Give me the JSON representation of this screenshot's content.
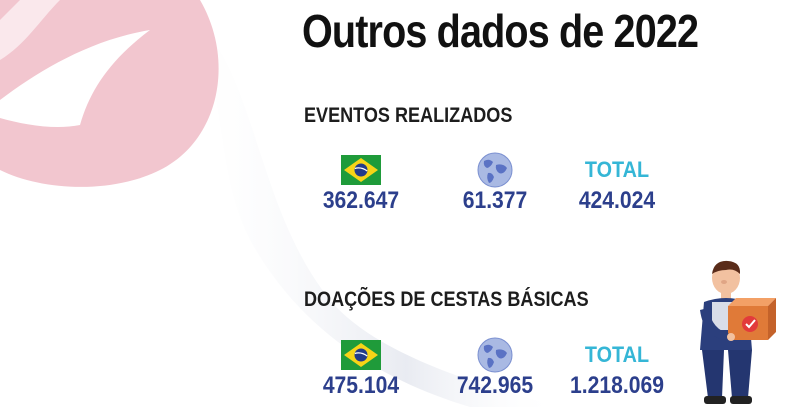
{
  "page": {
    "title": "Outros dados de 2022"
  },
  "colors": {
    "accent_blue": "#2c3f8c",
    "total_cyan": "#35b6d6",
    "brand_pink": "#f2c6cf"
  },
  "sections": [
    {
      "heading": "EVENTOS REALIZADOS",
      "brazil_value": "362.647",
      "world_value": "61.377",
      "total_label": "TOTAL",
      "total_value": "424.024"
    },
    {
      "heading": "DOAÇÕES DE CESTAS BÁSICAS",
      "brazil_value": "475.104",
      "world_value": "742.965",
      "total_label": "TOTAL",
      "total_value": "1.218.069"
    }
  ],
  "icons": {
    "brazil": "brazil-flag-icon",
    "world": "globe-icon",
    "worker": "delivery-worker-illustration"
  }
}
